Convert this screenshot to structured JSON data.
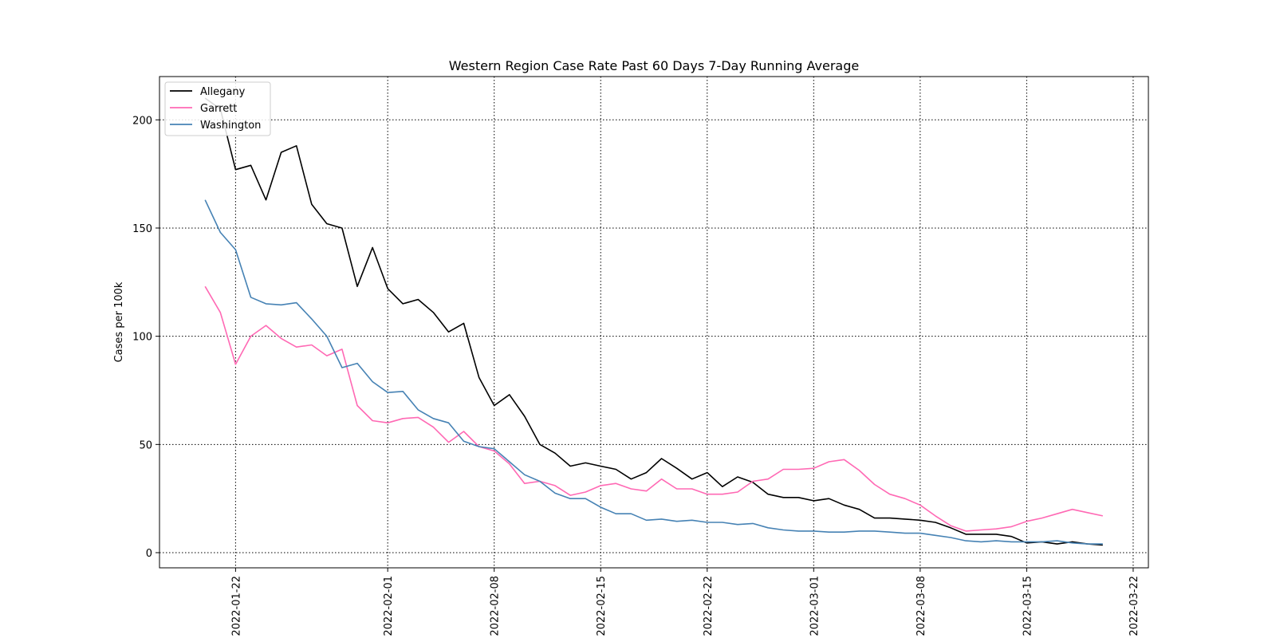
{
  "chart_data": {
    "type": "line",
    "title": "Western Region Case Rate  Past 60 Days 7-Day Running Average",
    "xlabel": "",
    "ylabel": "Cases per 100k",
    "x_start": "2022-01-20",
    "x_end": "2022-03-20",
    "xlim": [
      "2022-01-17",
      "2022-03-23"
    ],
    "ylim": [
      -7,
      220
    ],
    "x_ticks": [
      "2022-01-22",
      "2022-02-01",
      "2022-02-08",
      "2022-02-15",
      "2022-02-22",
      "2022-03-01",
      "2022-03-08",
      "2022-03-15",
      "2022-03-22"
    ],
    "y_ticks": [
      0,
      50,
      100,
      150,
      200
    ],
    "grid": true,
    "legend_position": "top-left",
    "series": [
      {
        "name": "Allegany",
        "color": "#000000",
        "values": [
          210,
          205,
          177,
          179,
          163,
          185,
          188,
          161,
          152,
          150,
          123,
          141,
          122,
          115,
          117,
          111,
          102,
          106,
          81,
          68,
          73,
          63,
          50,
          46,
          40,
          41.5,
          40,
          38.5,
          34,
          37,
          43.5,
          39,
          34,
          37,
          30.5,
          35,
          32.5,
          27,
          25.5,
          25.5,
          24,
          25,
          22,
          20,
          16,
          16,
          15.5,
          15,
          14,
          11.5,
          8.5,
          8.5,
          8.5,
          7.5,
          4.5,
          5,
          4,
          5,
          4,
          3.5
        ]
      },
      {
        "name": "Garrett",
        "color": "#ff69b4",
        "values": [
          123,
          111,
          87,
          100,
          105,
          99,
          95,
          96,
          91,
          94,
          68,
          61,
          60,
          62,
          62.5,
          58,
          51,
          56,
          49,
          47,
          41,
          32,
          33,
          31,
          26.5,
          28,
          31,
          32,
          29.5,
          28.5,
          34,
          29.5,
          29.5,
          27,
          27,
          28,
          33,
          34,
          38.5,
          38.5,
          39,
          42,
          43,
          38,
          31.5,
          27,
          25,
          22,
          17,
          12.5,
          10,
          10.5,
          11,
          12,
          14.5,
          16,
          18,
          20,
          18.5,
          17
        ]
      },
      {
        "name": "Washington",
        "color": "#4682b4",
        "values": [
          163,
          148,
          140,
          118,
          115,
          114.5,
          115.5,
          108,
          100,
          85.5,
          87.5,
          79,
          74,
          74.5,
          66,
          62,
          60,
          51.5,
          49,
          48,
          42,
          36,
          33,
          27.5,
          25,
          25,
          21,
          18,
          18,
          15,
          15.5,
          14.5,
          15,
          14,
          14,
          13,
          13.5,
          11.5,
          10.5,
          10,
          10,
          9.5,
          9.5,
          10,
          10,
          9.5,
          9,
          9,
          8,
          7,
          5.5,
          5,
          5.5,
          5,
          5,
          5,
          5.5,
          4.5,
          4,
          4
        ]
      }
    ]
  }
}
